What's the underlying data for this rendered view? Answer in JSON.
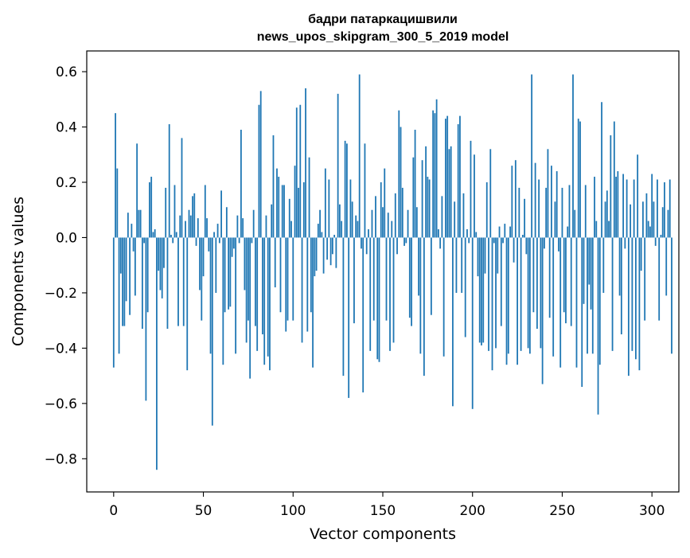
{
  "chart_data": {
    "type": "bar",
    "title": "бадри патаркацишвили",
    "subtitle": "news_upos_skipgram_300_5_2019 model",
    "xlabel": "Vector components",
    "ylabel": "Components values",
    "xlim": [
      -15,
      315
    ],
    "ylim": [
      -0.92,
      0.675
    ],
    "x_ticks": [
      0,
      50,
      100,
      150,
      200,
      250,
      300
    ],
    "x_tick_labels": [
      "0",
      "50",
      "100",
      "150",
      "200",
      "250",
      "300"
    ],
    "y_ticks": [
      -0.8,
      -0.6,
      -0.4,
      -0.2,
      0.0,
      0.2,
      0.4,
      0.6
    ],
    "y_tick_labels": [
      "−0.8",
      "−0.6",
      "−0.4",
      "−0.2",
      "0.0",
      "0.2",
      "0.4",
      "0.6"
    ],
    "bar_color": "#1f77b4",
    "grid": false,
    "legend": "none",
    "values": [
      -0.47,
      0.45,
      0.25,
      -0.42,
      -0.13,
      -0.32,
      -0.32,
      -0.23,
      0.09,
      -0.28,
      0.05,
      -0.05,
      -0.21,
      0.34,
      0.1,
      0.1,
      -0.33,
      -0.02,
      -0.59,
      -0.27,
      0.2,
      0.22,
      0.02,
      0.03,
      -0.84,
      -0.12,
      -0.19,
      -0.22,
      -0.11,
      0.18,
      -0.33,
      0.41,
      0.01,
      -0.02,
      0.19,
      0.02,
      -0.32,
      0.08,
      0.36,
      -0.32,
      0.06,
      -0.48,
      0.1,
      0.08,
      0.15,
      0.16,
      -0.03,
      0.07,
      -0.19,
      -0.3,
      -0.14,
      0.19,
      0.07,
      -0.05,
      -0.42,
      -0.68,
      0.02,
      -0.2,
      0.05,
      -0.02,
      0.17,
      -0.46,
      -0.27,
      0.11,
      -0.26,
      -0.25,
      -0.07,
      -0.04,
      -0.42,
      0.08,
      -0.02,
      0.39,
      0.07,
      -0.19,
      -0.38,
      -0.3,
      -0.51,
      -0.02,
      0.1,
      -0.32,
      -0.41,
      0.48,
      0.53,
      -0.35,
      -0.46,
      0.08,
      -0.43,
      -0.48,
      0.12,
      0.37,
      -0.18,
      0.25,
      0.22,
      -0.27,
      0.19,
      0.19,
      -0.34,
      -0.3,
      0.14,
      0.06,
      -0.3,
      0.26,
      0.47,
      0.18,
      0.48,
      -0.38,
      0.2,
      0.54,
      -0.34,
      0.29,
      -0.27,
      -0.47,
      -0.14,
      -0.12,
      0.05,
      0.1,
      0.02,
      -0.13,
      0.25,
      -0.08,
      0.21,
      -0.1,
      -0.06,
      0.01,
      -0.11,
      0.52,
      0.12,
      0.06,
      -0.5,
      0.35,
      0.34,
      -0.58,
      0.21,
      0.13,
      -0.31,
      0.08,
      0.06,
      0.59,
      -0.04,
      -0.56,
      0.34,
      -0.06,
      0.03,
      -0.41,
      0.1,
      -0.3,
      0.15,
      -0.44,
      -0.45,
      0.2,
      0.11,
      0.25,
      -0.3,
      0.09,
      -0.41,
      0.06,
      -0.38,
      0.16,
      -0.06,
      0.46,
      0.4,
      0.18,
      -0.03,
      -0.02,
      0.1,
      -0.29,
      -0.32,
      0.29,
      0.39,
      0.11,
      -0.21,
      -0.42,
      0.28,
      -0.5,
      0.33,
      0.22,
      0.21,
      -0.28,
      0.46,
      0.45,
      0.5,
      0.03,
      -0.04,
      0.15,
      -0.43,
      0.43,
      0.44,
      0.32,
      0.33,
      -0.61,
      0.13,
      -0.2,
      0.41,
      0.44,
      -0.2,
      0.16,
      -0.36,
      0.03,
      -0.02,
      0.35,
      -0.62,
      0.3,
      0.02,
      -0.14,
      -0.38,
      -0.39,
      -0.38,
      -0.13,
      0.2,
      -0.41,
      0.32,
      -0.48,
      -0.02,
      -0.4,
      -0.13,
      0.04,
      -0.32,
      -0.02,
      0.05,
      -0.46,
      -0.42,
      0.04,
      0.26,
      -0.09,
      0.28,
      -0.46,
      0.18,
      -0.41,
      0.01,
      0.14,
      -0.06,
      -0.4,
      -0.42,
      0.59,
      -0.27,
      0.27,
      -0.33,
      0.21,
      -0.4,
      -0.53,
      -0.04,
      0.18,
      0.32,
      -0.29,
      0.26,
      -0.43,
      0.13,
      0.24,
      -0.05,
      -0.47,
      0.18,
      -0.27,
      -0.31,
      0.04,
      0.19,
      -0.32,
      0.59,
      0.1,
      -0.47,
      0.43,
      0.42,
      -0.54,
      -0.24,
      0.19,
      -0.42,
      -0.17,
      -0.26,
      -0.42,
      0.22,
      0.06,
      -0.64,
      -0.46,
      0.49,
      -0.2,
      0.13,
      0.17,
      0.06,
      0.37,
      -0.41,
      0.42,
      0.22,
      0.24,
      -0.21,
      -0.35,
      0.23,
      -0.04,
      0.21,
      -0.5,
      0.12,
      -0.41,
      0.21,
      -0.44,
      0.3,
      -0.48,
      -0.12,
      0.13,
      -0.3,
      0.16,
      0.06,
      0.04,
      0.23,
      0.13,
      -0.03,
      0.21,
      -0.3,
      0.01,
      0.11,
      0.2,
      -0.21,
      0.1,
      0.21,
      -0.42
    ]
  }
}
